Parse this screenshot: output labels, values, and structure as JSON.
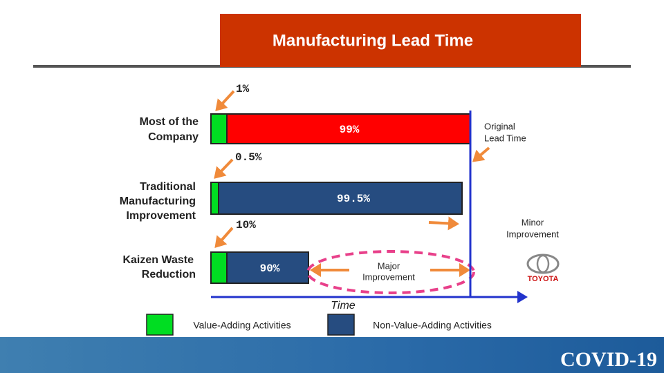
{
  "header": {
    "title": "Manufacturing Lead Time"
  },
  "rows": [
    {
      "label": [
        "Most of the",
        "Company"
      ],
      "value_adding": "1%",
      "non_value_adding": "99%"
    },
    {
      "label": [
        "Traditional",
        "Manufacturing",
        "Improvement"
      ],
      "value_adding": "0.5%",
      "non_value_adding": "99.5%"
    },
    {
      "label": [
        "Kaizen Waste",
        "Reduction"
      ],
      "value_adding": "10%",
      "non_value_adding": "90%"
    }
  ],
  "notes": {
    "original": [
      "Original",
      "Lead Time"
    ],
    "minor": [
      "Minor",
      "Improvement"
    ],
    "major": [
      "Major",
      "Improvement"
    ]
  },
  "axis_label": "Time",
  "legend": [
    "Value-Adding Activities",
    "Non-Value-Adding Activities"
  ],
  "logo": "TOYOTA",
  "footer": "COVID-19"
}
